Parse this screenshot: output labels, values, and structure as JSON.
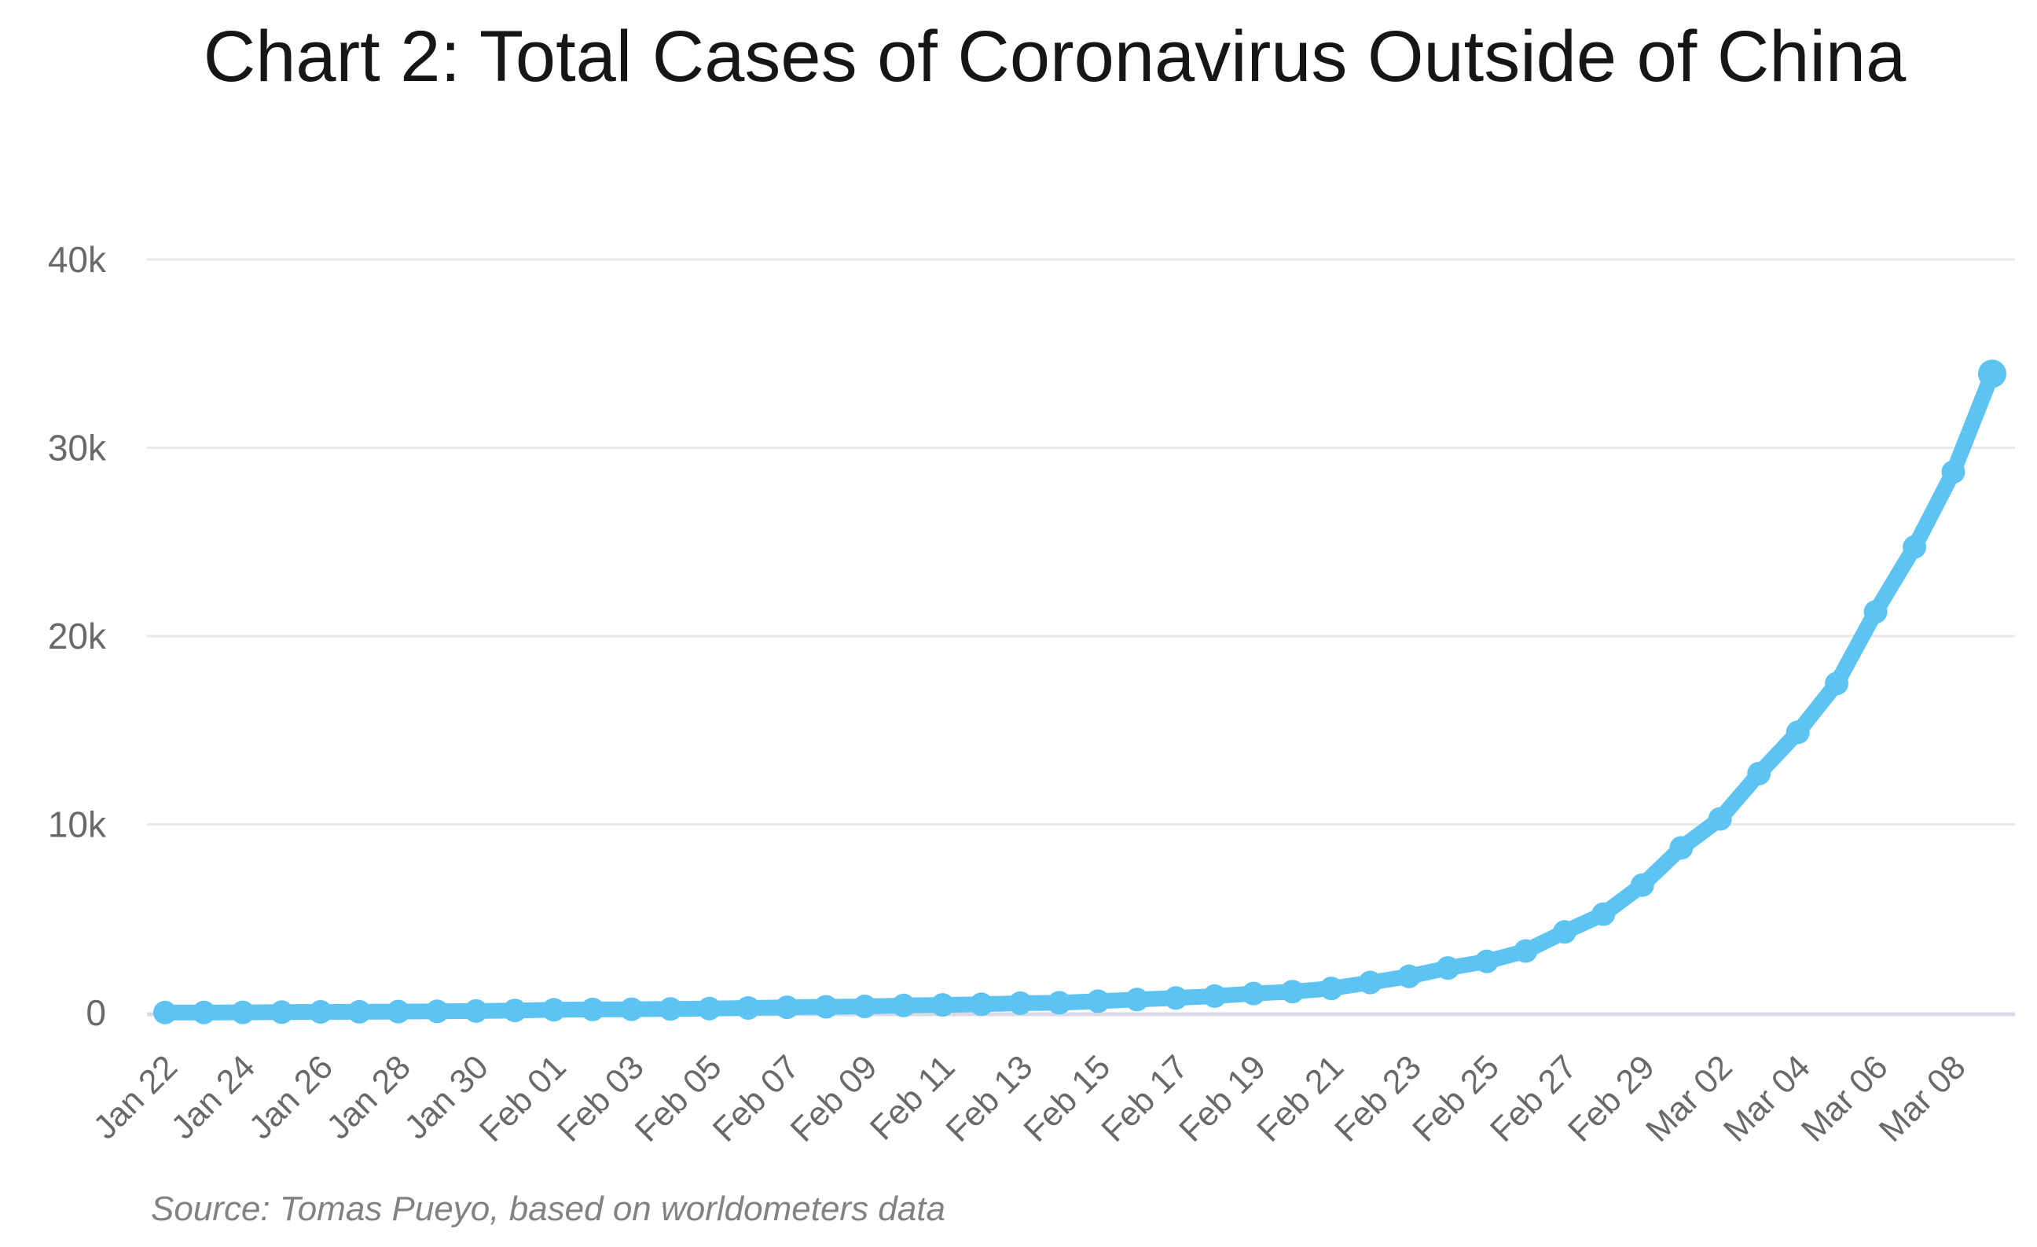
{
  "chart_data": {
    "type": "line",
    "title": "Chart 2: Total Cases of Coronavirus Outside of China",
    "source": "Source: Tomas Pueyo, based on worldometers data",
    "xlabel": "",
    "ylabel": "",
    "ylim": [
      0,
      40000
    ],
    "grid": "horizontal",
    "legend": "none",
    "marker": "circle",
    "x": [
      "Jan 22",
      "Jan 23",
      "Jan 24",
      "Jan 25",
      "Jan 26",
      "Jan 27",
      "Jan 28",
      "Jan 29",
      "Jan 30",
      "Jan 31",
      "Feb 01",
      "Feb 02",
      "Feb 03",
      "Feb 04",
      "Feb 05",
      "Feb 06",
      "Feb 07",
      "Feb 08",
      "Feb 09",
      "Feb 10",
      "Feb 11",
      "Feb 12",
      "Feb 13",
      "Feb 14",
      "Feb 15",
      "Feb 16",
      "Feb 17",
      "Feb 18",
      "Feb 19",
      "Feb 20",
      "Feb 21",
      "Feb 22",
      "Feb 23",
      "Feb 24",
      "Feb 25",
      "Feb 26",
      "Feb 27",
      "Feb 28",
      "Feb 29",
      "Mar 01",
      "Mar 02",
      "Mar 03",
      "Mar 04",
      "Mar 05",
      "Mar 06",
      "Mar 07",
      "Mar 08",
      "Mar 09"
    ],
    "series": [
      {
        "name": "Total cases of coronavirus outside of China",
        "values": [
          9,
          12,
          17,
          28,
          40,
          47,
          60,
          70,
          86,
          118,
          153,
          173,
          183,
          197,
          219,
          250,
          288,
          313,
          332,
          383,
          413,
          447,
          505,
          526,
          610,
          697,
          781,
          880,
          1019,
          1118,
          1291,
          1604,
          1930,
          2375,
          2723,
          3276,
          4288,
          5234,
          6775,
          8753,
          10293,
          12696,
          14890,
          17481,
          21287,
          24727,
          28712,
          33931
        ]
      }
    ],
    "y_ticks": [
      {
        "value": 0,
        "label": "0"
      },
      {
        "value": 10000,
        "label": "10k"
      },
      {
        "value": 20000,
        "label": "20k"
      },
      {
        "value": 30000,
        "label": "30k"
      },
      {
        "value": 40000,
        "label": "40k"
      }
    ],
    "x_tick_labels_shown": [
      "Jan 22",
      "Jan 24",
      "Jan 26",
      "Jan 28",
      "Jan 30",
      "Feb 01",
      "Feb 03",
      "Feb 05",
      "Feb 07",
      "Feb 09",
      "Feb 11",
      "Feb 13",
      "Feb 15",
      "Feb 17",
      "Feb 19",
      "Feb 21",
      "Feb 23",
      "Feb 25",
      "Feb 27",
      "Feb 29",
      "Mar 02",
      "Mar 04",
      "Mar 06",
      "Mar 08"
    ],
    "colors": {
      "line": "#5CC3F2",
      "grid_line": "#E9E9E9",
      "axis_line": "#D9DAE8",
      "tick_text": "#696969",
      "title_text": "#161616",
      "source_text": "#828282"
    }
  }
}
